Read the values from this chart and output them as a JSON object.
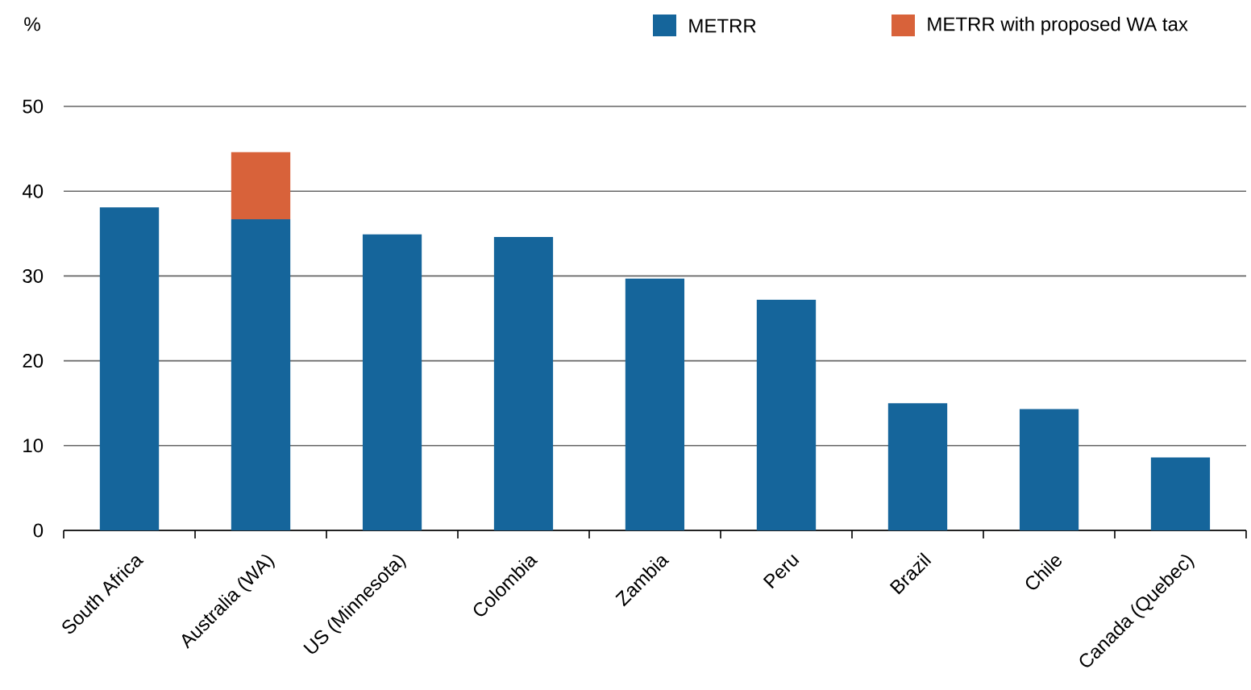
{
  "chart_data": {
    "type": "bar",
    "stacked": true,
    "ylabel": "%",
    "categories": [
      "South Africa",
      "Australia (WA)",
      "US (Minnesota)",
      "Colombia",
      "Zambia",
      "Peru",
      "Brazil",
      "Chile",
      "Canada (Quebec)"
    ],
    "series": [
      {
        "name": "METRR",
        "color": "#15659b",
        "values": [
          38.1,
          36.7,
          34.9,
          34.6,
          29.7,
          27.2,
          15.0,
          14.3,
          8.6
        ]
      },
      {
        "name": "METRR with proposed WA tax",
        "color": "#d8623a",
        "values": [
          null,
          7.9,
          null,
          null,
          null,
          null,
          null,
          null,
          null
        ]
      }
    ],
    "ylim": [
      0,
      50
    ],
    "yticks": [
      0,
      10,
      20,
      30,
      40,
      50
    ],
    "grid": "y",
    "legend": "top right"
  }
}
